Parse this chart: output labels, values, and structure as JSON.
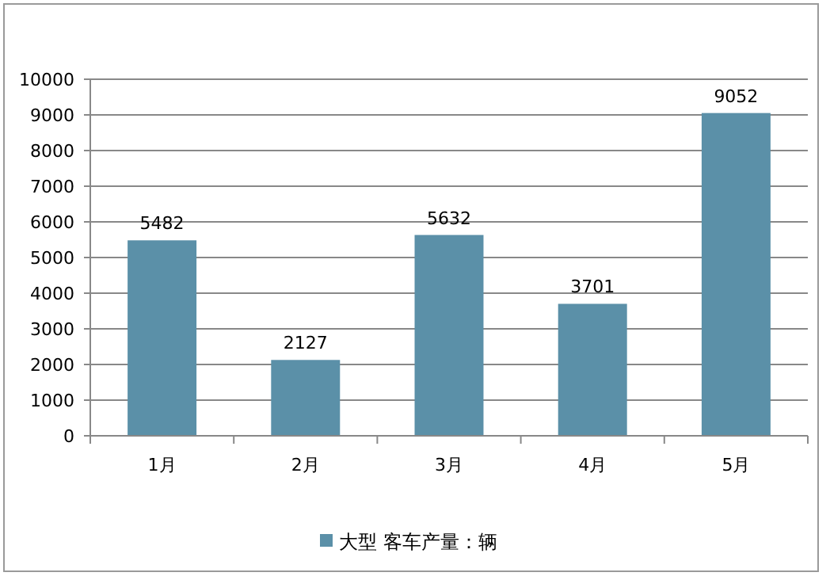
{
  "chart_data": {
    "type": "bar",
    "categories": [
      "1月",
      "2月",
      "3月",
      "4月",
      "5月"
    ],
    "series": [
      {
        "name": "大型 客车产量：辆",
        "color": "#5b90a8",
        "values": [
          5482,
          2127,
          5632,
          3701,
          9052
        ]
      }
    ],
    "ylim": [
      0,
      10000
    ],
    "yticks": [
      0,
      1000,
      2000,
      3000,
      4000,
      5000,
      6000,
      7000,
      8000,
      9000,
      10000
    ],
    "grid": "y",
    "data_labels": true,
    "legend": "bottom"
  }
}
